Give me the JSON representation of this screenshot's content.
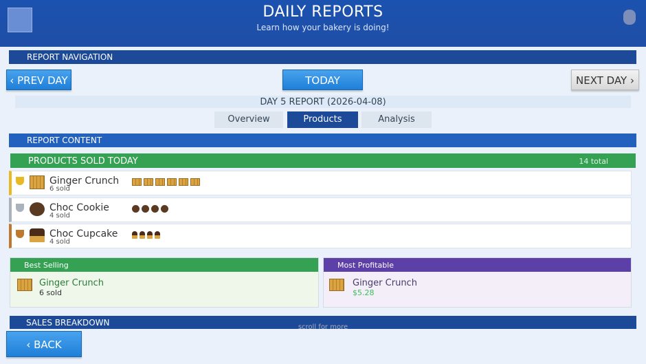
{
  "header": {
    "title": "DAILY REPORTS",
    "subtitle": "Learn how your bakery is doing!"
  },
  "navigation": {
    "title": "REPORT NAVIGATION",
    "prev": "‹ PREV DAY",
    "today": "TODAY",
    "next": "NEXT DAY ›"
  },
  "report": {
    "title": "DAY 5 REPORT (2026-04-08)",
    "tabs": [
      "Overview",
      "Products",
      "Analysis"
    ],
    "active_tab": 1
  },
  "content": {
    "title": "REPORT CONTENT"
  },
  "products": {
    "title": "PRODUCTS SOLD TODAY",
    "total": "14 total",
    "items": [
      {
        "name": "Ginger Crunch",
        "sold_label": "6 sold",
        "count": 6
      },
      {
        "name": "Choc Cookie",
        "sold_label": "4 sold",
        "count": 4
      },
      {
        "name": "Choc Cupcake",
        "sold_label": "4 sold",
        "count": 4
      }
    ]
  },
  "best_selling": {
    "title": "Best Selling",
    "name": "Ginger Crunch",
    "detail": "6 sold"
  },
  "most_profitable": {
    "title": "Most Profitable",
    "name": "Ginger Crunch",
    "detail": "$5.28"
  },
  "sales_breakdown": {
    "title": "SALES BREAKDOWN"
  },
  "scroll_hint": "scroll for more",
  "back": "‹ BACK"
}
